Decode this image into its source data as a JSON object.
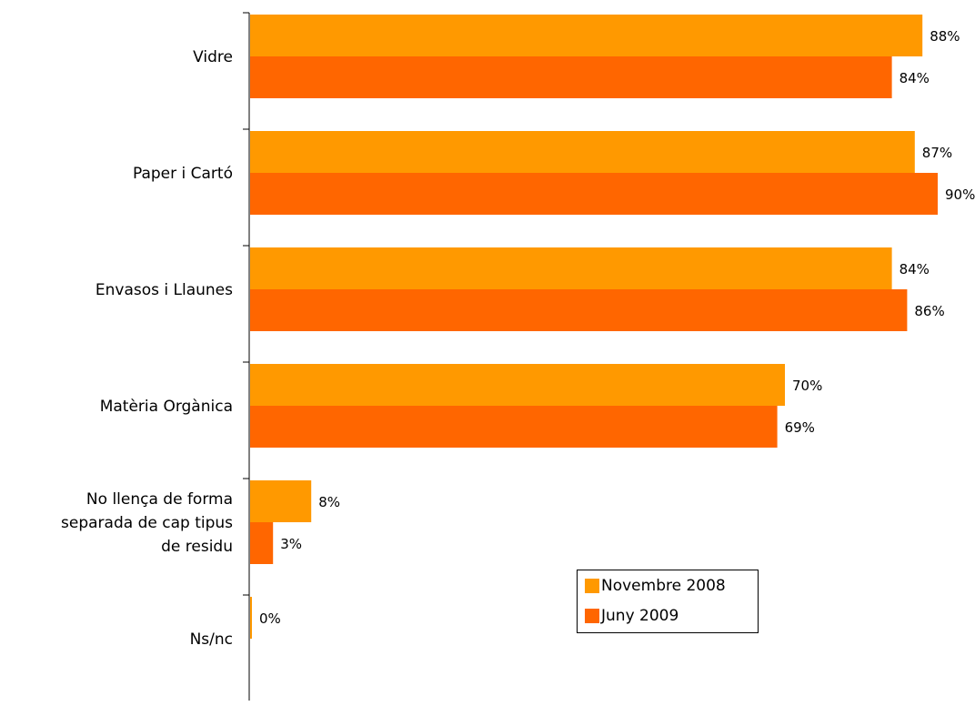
{
  "chart_data": {
    "type": "bar",
    "orientation": "horizontal",
    "categories": [
      "Vidre",
      "Paper i Cartó",
      "Envasos i Llaunes",
      "Matèria Orgànica",
      "No llença de forma separada de cap tipus de residu",
      "Ns/nc"
    ],
    "category_lines": [
      [
        "Vidre"
      ],
      [
        "Paper i Cartó"
      ],
      [
        "Envasos i Llaunes"
      ],
      [
        "Matèria Orgànica"
      ],
      [
        "No llença de forma",
        "separada de cap tipus",
        "de residu"
      ],
      [
        "Ns/nc"
      ]
    ],
    "series": [
      {
        "name": "Novembre 2008",
        "color": "#FF9900",
        "values": [
          88,
          87,
          84,
          70,
          8,
          0
        ],
        "labels": [
          "88%",
          "87%",
          "84%",
          "70%",
          "8%",
          "0%"
        ]
      },
      {
        "name": "Juny 2009",
        "color": "#FF6600",
        "values": [
          84,
          90,
          86,
          69,
          3,
          null
        ],
        "labels": [
          "84%",
          "90%",
          "86%",
          "69%",
          "3%",
          ""
        ]
      }
    ],
    "xlim": [
      0,
      100
    ],
    "grid": false,
    "legend_position": "bottom-right"
  },
  "legend": {
    "items": [
      {
        "label": "Novembre 2008",
        "color": "#FF9900"
      },
      {
        "label": "Juny 2009",
        "color": "#FF6600"
      }
    ]
  }
}
